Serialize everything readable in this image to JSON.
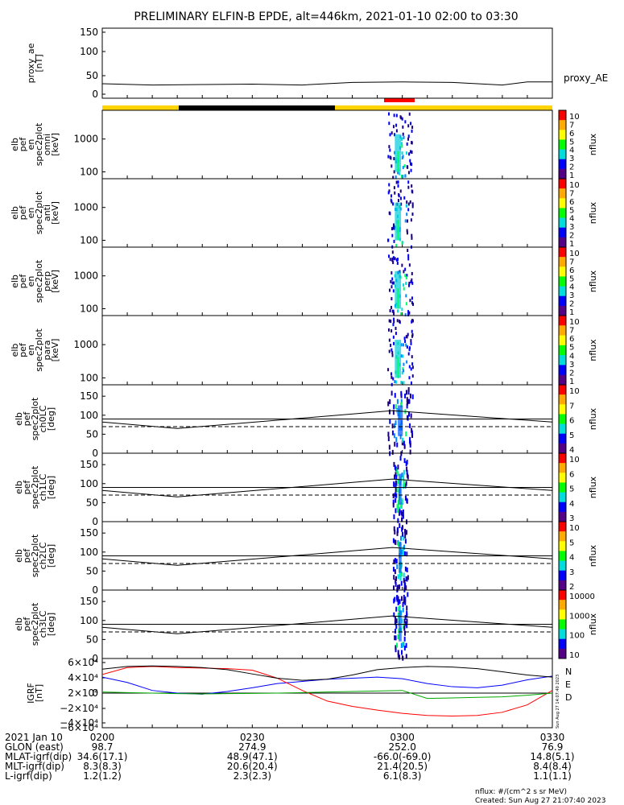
{
  "title": "PRELIMINARY ELFIN-B EPDE, alt=446km, 2021-01-10 02:00 to 03:30",
  "colors": {
    "state_yellow": "#ffd400",
    "state_black": "#000000",
    "state_red": "#ff0000",
    "igrf_n": "#0000ff",
    "igrf_e": "#ff0000",
    "igrf_d": "#00aa00",
    "igrf_mag": "#000000"
  },
  "panels": [
    {
      "key": "proxy_ae",
      "ylabel_lines": [
        "proxy_ae",
        "[nT]"
      ],
      "yticks": [
        "150",
        "100",
        "50",
        "0"
      ],
      "right_label": "proxy_AE"
    },
    {
      "key": "omni",
      "ylabel_lines": [
        "elb",
        "pef",
        "en",
        "spec2plot",
        "omni",
        "[keV]"
      ],
      "yticks": [
        "1000",
        "100"
      ],
      "cbar_ticks": [
        "10",
        "7",
        "6",
        "5",
        "4",
        "3",
        "2",
        "1"
      ],
      "cbar_title": "nflux"
    },
    {
      "key": "anti",
      "ylabel_lines": [
        "elb",
        "pef",
        "en",
        "spec2plot",
        "anti",
        "[keV]"
      ],
      "yticks": [
        "1000",
        "100"
      ],
      "cbar_ticks": [
        "10",
        "7",
        "6",
        "5",
        "4",
        "3",
        "2",
        "1"
      ],
      "cbar_title": "nflux"
    },
    {
      "key": "perp",
      "ylabel_lines": [
        "elb",
        "pef",
        "en",
        "spec2plot",
        "perp",
        "[keV]"
      ],
      "yticks": [
        "1000",
        "100"
      ],
      "cbar_ticks": [
        "10",
        "7",
        "6",
        "5",
        "4",
        "3",
        "2",
        "1"
      ],
      "cbar_title": "nflux"
    },
    {
      "key": "para",
      "ylabel_lines": [
        "elb",
        "pef",
        "en",
        "spec2plot",
        "para",
        "[keV]"
      ],
      "yticks": [
        "1000",
        "100"
      ],
      "cbar_ticks": [
        "10",
        "7",
        "6",
        "5",
        "4",
        "3",
        "2",
        "1"
      ],
      "cbar_title": "nflux"
    },
    {
      "key": "ch0LC",
      "ylabel_lines": [
        "elb",
        "pef",
        "spec2plot",
        "ch0LC",
        "[deg]"
      ],
      "yticks": [
        "150",
        "100",
        "50",
        "0"
      ],
      "cbar_ticks": [
        "10",
        "7",
        "6",
        "5",
        "4"
      ],
      "cbar_title": "nflux"
    },
    {
      "key": "ch1LC",
      "ylabel_lines": [
        "elb",
        "pef",
        "spec2plot",
        "ch1LC",
        "[deg]"
      ],
      "yticks": [
        "150",
        "100",
        "50",
        "0"
      ],
      "cbar_ticks": [
        "10",
        "6",
        "5",
        "4",
        "3"
      ],
      "cbar_title": "nflux"
    },
    {
      "key": "ch2LC",
      "ylabel_lines": [
        "elb",
        "pef",
        "spec2plot",
        "ch2LC",
        "[deg]"
      ],
      "yticks": [
        "150",
        "100",
        "50",
        "0"
      ],
      "cbar_ticks": [
        "10",
        "5",
        "4",
        "3",
        "2"
      ],
      "cbar_title": "nflux"
    },
    {
      "key": "ch3LC",
      "ylabel_lines": [
        "elb",
        "pef",
        "spec2plot",
        "ch3LC",
        "[deg]"
      ],
      "yticks": [
        "150",
        "100",
        "50",
        "0"
      ],
      "cbar_ticks": [
        "10000",
        "1000",
        "100",
        "10"
      ],
      "cbar_title": "nflux"
    },
    {
      "key": "igrf",
      "ylabel_lines": [
        "IGRF",
        "[nT]"
      ],
      "yticks": [
        "6×10⁴",
        "4×10⁴",
        "2×10⁴",
        "0",
        "−2×10⁴",
        "−4×10⁴",
        "−6×10⁴"
      ],
      "legend": [
        "N",
        "E",
        "D"
      ]
    }
  ],
  "chart_data": [
    {
      "type": "line",
      "key": "proxy_ae",
      "ylim": [
        0,
        150
      ],
      "x": [
        "02:00",
        "02:10",
        "02:20",
        "02:30",
        "02:40",
        "02:50",
        "03:00",
        "03:10",
        "03:20",
        "03:25",
        "03:30"
      ],
      "series": [
        {
          "name": "proxy_AE",
          "values": [
            33,
            30,
            31,
            32,
            30,
            36,
            37,
            36,
            30,
            37,
            37
          ]
        }
      ]
    },
    {
      "type": "heatmap",
      "key": "omni",
      "yscale": "log",
      "ylim": [
        70,
        5000
      ],
      "active_x": [
        "02:57",
        "03:02"
      ],
      "zlim": [
        10,
        10000000
      ]
    },
    {
      "type": "heatmap",
      "key": "anti",
      "yscale": "log",
      "ylim": [
        70,
        5000
      ],
      "active_x": [
        "02:57",
        "03:02"
      ],
      "zlim": [
        10,
        10000000
      ]
    },
    {
      "type": "heatmap",
      "key": "perp",
      "yscale": "log",
      "ylim": [
        70,
        5000
      ],
      "active_x": [
        "02:57",
        "03:02"
      ],
      "zlim": [
        10,
        10000000
      ]
    },
    {
      "type": "heatmap",
      "key": "para",
      "yscale": "log",
      "ylim": [
        70,
        5000
      ],
      "active_x": [
        "02:57",
        "03:02"
      ],
      "zlim": [
        10,
        10000000
      ]
    },
    {
      "type": "heatmap",
      "key": "ch0LC",
      "ylim": [
        0,
        180
      ],
      "active_x": [
        "02:57",
        "03:02"
      ],
      "lines": {
        "x": [
          "02:00",
          "02:15",
          "02:58",
          "03:30"
        ],
        "solid": [
          82,
          65,
          112,
          82
        ],
        "dashed": [
          70,
          70,
          70,
          70
        ],
        "ref": 90
      }
    },
    {
      "type": "heatmap",
      "key": "ch1LC",
      "ylim": [
        0,
        180
      ],
      "active_x": [
        "02:58",
        "03:01"
      ],
      "lines": {
        "x": [
          "02:00",
          "02:15",
          "02:58",
          "03:30"
        ],
        "solid": [
          82,
          65,
          112,
          82
        ],
        "dashed": [
          70,
          70,
          70,
          70
        ],
        "ref": 90
      }
    },
    {
      "type": "heatmap",
      "key": "ch2LC",
      "ylim": [
        0,
        180
      ],
      "active_x": [
        "02:58",
        "03:01"
      ],
      "lines": {
        "x": [
          "02:00",
          "02:15",
          "02:58",
          "03:30"
        ],
        "solid": [
          82,
          65,
          112,
          82
        ],
        "dashed": [
          70,
          70,
          70,
          70
        ],
        "ref": 90
      }
    },
    {
      "type": "heatmap",
      "key": "ch3LC",
      "ylim": [
        0,
        180
      ],
      "active_x": [
        "02:58",
        "03:01"
      ],
      "lines": {
        "x": [
          "02:00",
          "02:15",
          "02:58",
          "03:30"
        ],
        "solid": [
          82,
          65,
          112,
          82
        ],
        "dashed": [
          70,
          70,
          70,
          70
        ],
        "ref": 90
      }
    },
    {
      "type": "line",
      "key": "igrf",
      "ylim": [
        -65000,
        65000
      ],
      "x": [
        "02:00",
        "02:05",
        "02:10",
        "02:15",
        "02:20",
        "02:25",
        "02:30",
        "02:35",
        "02:40",
        "02:45",
        "02:50",
        "02:55",
        "03:00",
        "03:05",
        "03:10",
        "03:15",
        "03:20",
        "03:25",
        "03:30"
      ],
      "series": [
        {
          "name": "N",
          "color": "#0000ff",
          "values": [
            30000,
            20000,
            5000,
            0,
            -2000,
            3000,
            10000,
            18000,
            22000,
            26000,
            28000,
            30000,
            27000,
            18000,
            12000,
            10000,
            15000,
            25000,
            32000
          ]
        },
        {
          "name": "E",
          "color": "#ff0000",
          "values": [
            35000,
            48000,
            50000,
            48000,
            47000,
            46000,
            43000,
            28000,
            5000,
            -15000,
            -25000,
            -32000,
            -38000,
            -42000,
            -43000,
            -42000,
            -36000,
            -22000,
            5000
          ]
        },
        {
          "name": "D",
          "color": "#00aa00",
          "values": [
            2000,
            1000,
            0,
            -1000,
            -1500,
            -1000,
            -500,
            0,
            1000,
            2000,
            3000,
            4000,
            5000,
            -10000,
            -9000,
            -8000,
            -7000,
            -4000,
            0
          ]
        },
        {
          "name": "Mag",
          "color": "#000000",
          "values": [
            45000,
            50000,
            51000,
            50000,
            48000,
            44000,
            36000,
            28000,
            24000,
            26000,
            34000,
            44000,
            48000,
            50000,
            49000,
            46000,
            40000,
            34000,
            30000
          ]
        }
      ]
    }
  ],
  "footer": {
    "rows": [
      {
        "label": "2021 Jan 10",
        "values": [
          "0200",
          "0230",
          "0300",
          "0330"
        ]
      },
      {
        "label": "GLON (east)",
        "values": [
          "98.7",
          "274.9",
          "252.0",
          "76.9"
        ]
      },
      {
        "label": "MLAT-igrf(dip)",
        "values": [
          "34.6(17.1)",
          "48.9(47.1)",
          "-66.0(-69.0)",
          "14.8(5.1)"
        ]
      },
      {
        "label": "MLT-igrf(dip)",
        "values": [
          "8.3(8.3)",
          "20.6(20.4)",
          "21.4(20.5)",
          "8.4(8.4)"
        ]
      },
      {
        "label": "L-igrf(dip)",
        "values": [
          "1.2(1.2)",
          "2.3(2.3)",
          "6.1(8.3)",
          "1.1(1.1)"
        ]
      }
    ],
    "units_note": "nflux: #/(cm^2 s sr MeV)",
    "created": "Created: Sun Aug 27 21:07:40 2023",
    "vertical_stamp": "Sun Aug 27 14:07:40 2023"
  }
}
